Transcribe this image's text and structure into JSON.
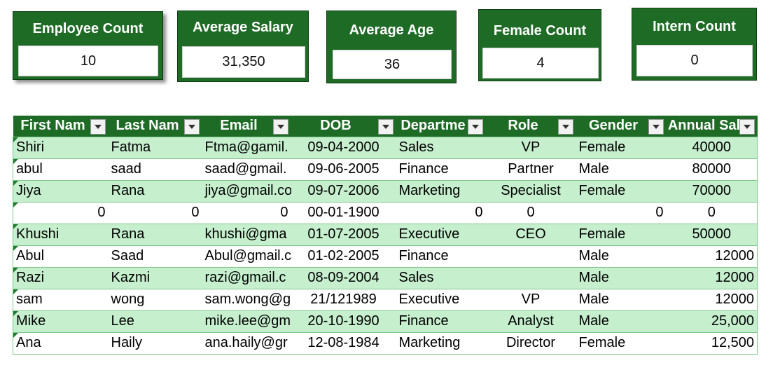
{
  "cards": [
    {
      "title": "Employee Count",
      "value": "10"
    },
    {
      "title": "Average Salary",
      "value": "31,350"
    },
    {
      "title": "Average Age",
      "value": "36"
    },
    {
      "title": "Female Count",
      "value": "4"
    },
    {
      "title": "Intern Count",
      "value": "0"
    }
  ],
  "table": {
    "headers": [
      "First Nam",
      "Last Nam",
      "Email",
      "DOB",
      "Departme",
      "Role",
      "Gender",
      "Annual Sal"
    ],
    "rows": [
      [
        "Shiri",
        "Fatma",
        "Ftma@gamil.",
        "09-04-2000",
        "Sales",
        "VP",
        "Female",
        "40000"
      ],
      [
        "abul",
        "saad",
        "saad@gmail.",
        "09-06-2005",
        "Finance",
        "Partner",
        "Male",
        "80000"
      ],
      [
        "Jiya",
        "Rana",
        "jiya@gmail.co",
        "09-07-2006",
        "Marketing",
        "Specialist",
        "Female",
        "70000"
      ],
      [
        "0",
        "0",
        "0",
        "00-01-1900",
        "0",
        "0",
        "0",
        "0"
      ],
      [
        "Khushi",
        "Rana",
        "khushi@gma",
        "01-07-2005",
        "Executive",
        "CEO",
        "Female",
        "50000"
      ],
      [
        "Abul",
        "Saad",
        "Abul@gmail.c",
        "01-02-2005",
        "Finance",
        "",
        "Male",
        "12000"
      ],
      [
        "Razi",
        "Kazmi",
        "razi@gmail.c",
        "08-09-2004",
        "Sales",
        "",
        "Male",
        "12000"
      ],
      [
        "sam",
        "wong",
        "sam.wong@g",
        "21/121989",
        "Executive",
        "VP",
        "Male",
        "12000"
      ],
      [
        "Mike",
        "Lee",
        "mike.lee@gm",
        "20-10-1990",
        "Finance",
        "Analyst",
        "Male",
        "25,000"
      ],
      [
        "Ana",
        "Haily",
        "ana.haily@gr",
        "12-08-1984",
        "Marketing",
        "Director",
        "Female",
        "12,500"
      ]
    ]
  },
  "colors": {
    "header_green": "#1e6b26",
    "band_green": "#c6efce"
  }
}
